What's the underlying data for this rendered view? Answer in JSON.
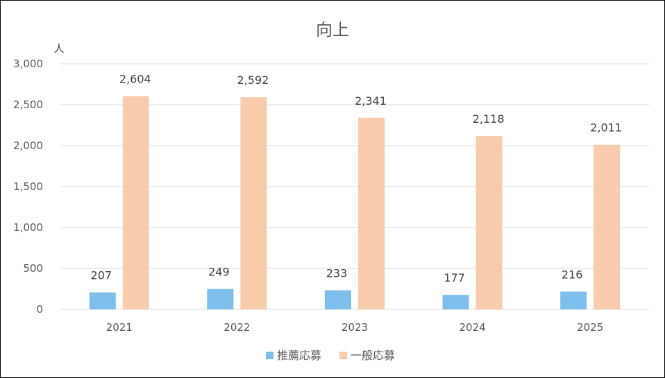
{
  "chart_data": {
    "type": "bar",
    "title": "向上",
    "ylabel": "人",
    "xlabel": "",
    "categories": [
      "2021",
      "2022",
      "2023",
      "2024",
      "2025"
    ],
    "series": [
      {
        "name": "推薦応募",
        "color": "#7DBEEA",
        "values": [
          207,
          249,
          233,
          177,
          216
        ],
        "labels": [
          "207",
          "249",
          "233",
          "177",
          "216"
        ]
      },
      {
        "name": "一般応募",
        "color": "#F7CBAC",
        "values": [
          2604,
          2592,
          2341,
          2118,
          2011
        ],
        "labels": [
          "2,604",
          "2,592",
          "2,341",
          "2,118",
          "2,011"
        ]
      }
    ],
    "ylim": [
      0,
      3000
    ],
    "yticks": [
      0,
      500,
      1000,
      1500,
      2000,
      2500,
      3000
    ],
    "ytick_labels": [
      "0",
      "500",
      "1,000",
      "1,500",
      "2,000",
      "2,500",
      "3,000"
    ],
    "grid": true,
    "legend_position": "bottom",
    "colors": {
      "gridline": "#D9D9D9",
      "axis": "#D9D9D9",
      "text": "#595959"
    }
  }
}
